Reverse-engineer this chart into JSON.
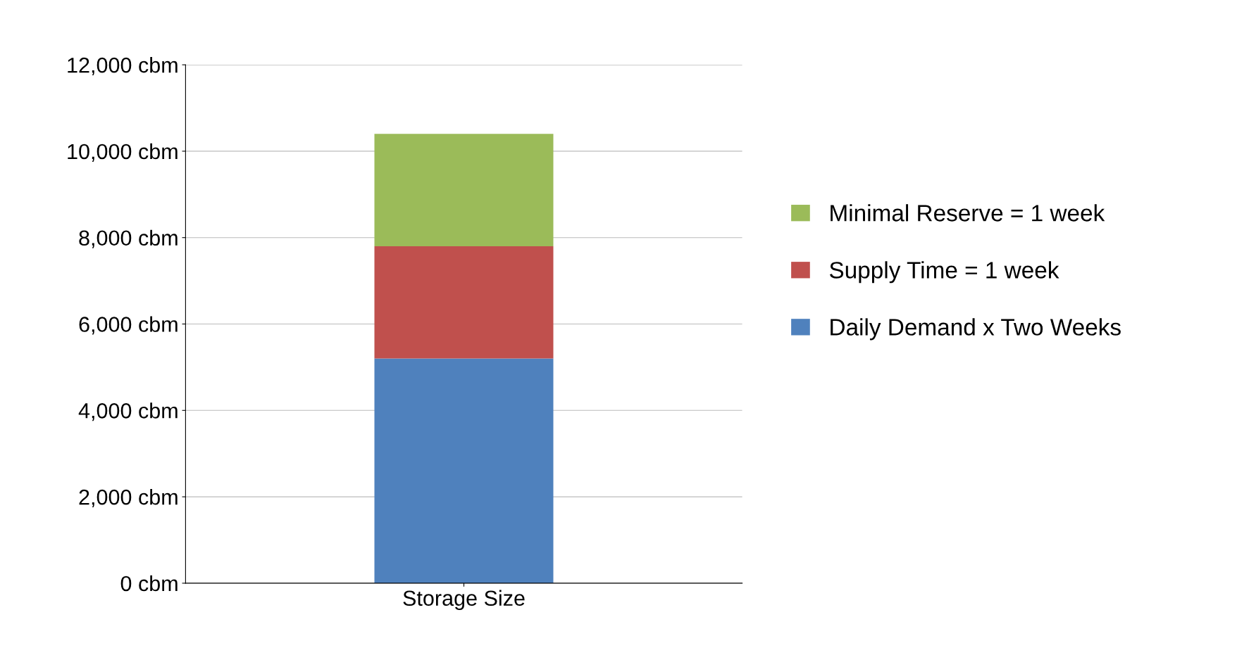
{
  "chart_data": {
    "type": "bar",
    "stacked": true,
    "categories": [
      "Storage Size"
    ],
    "series": [
      {
        "name": "Daily Demand x Two Weeks",
        "color": "#4f81bd",
        "values": [
          5200
        ]
      },
      {
        "name": "Supply Time = 1 week",
        "color": "#c0504d",
        "values": [
          2600
        ]
      },
      {
        "name": "Minimal Reserve = 1 week",
        "color": "#9bbb59",
        "values": [
          2600
        ]
      }
    ],
    "ylim": [
      0,
      12000
    ],
    "yticks": [
      {
        "value": 0,
        "label": "0 cbm"
      },
      {
        "value": 2000,
        "label": "2,000 cbm"
      },
      {
        "value": 4000,
        "label": "4,000 cbm"
      },
      {
        "value": 6000,
        "label": "6,000 cbm"
      },
      {
        "value": 8000,
        "label": "8,000 cbm"
      },
      {
        "value": 10000,
        "label": "10,000 cbm"
      },
      {
        "value": 12000,
        "label": "12,000 cbm"
      }
    ],
    "grid": "y",
    "legend": "right"
  }
}
